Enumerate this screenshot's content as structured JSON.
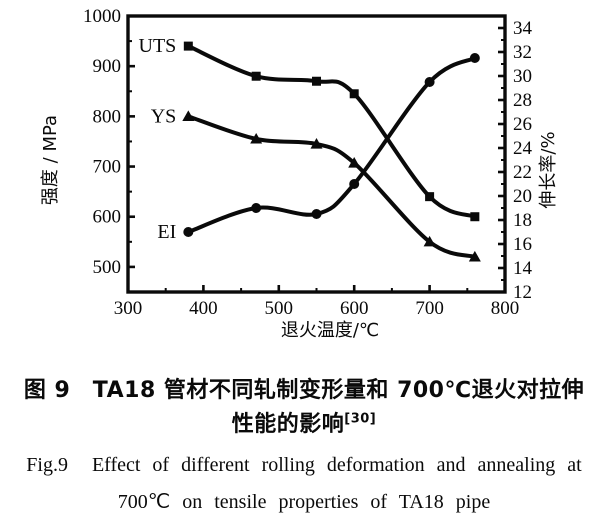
{
  "figure": {
    "caption_cn_line1": "图 9　TA18 管材不同轧制变形量和 700℃退火对拉伸",
    "caption_cn_line2": "性能的影响",
    "caption_cn_ref": "[30]",
    "caption_en_line1": "Fig.9  Effect of different rolling deformation and annealing at",
    "caption_en_line2": "700℃ on tensile properties of TA18 pipe"
  },
  "chart_data": {
    "type": "line",
    "title": "",
    "xlabel": "退火温度/℃",
    "ylabel_left": "强度 / MPa",
    "ylabel_right": "伸长率/%",
    "x": [
      380,
      470,
      550,
      600,
      700,
      760
    ],
    "series": [
      {
        "name": "UTS",
        "axis": "left",
        "marker": "square",
        "values": [
          940,
          880,
          870,
          845,
          640,
          600
        ]
      },
      {
        "name": "YS",
        "axis": "left",
        "marker": "triangle",
        "values": [
          800,
          755,
          745,
          707,
          550,
          520
        ]
      },
      {
        "name": "EI",
        "axis": "right",
        "marker": "circle",
        "values": [
          17,
          19,
          18.5,
          21,
          29.5,
          31.5
        ]
      }
    ],
    "x_ticks": [
      300,
      400,
      500,
      600,
      700,
      800
    ],
    "y_left_ticks": [
      1000,
      900,
      800,
      700,
      600,
      500
    ],
    "y_right_ticks": [
      34,
      32,
      30,
      28,
      26,
      24,
      22,
      20,
      18,
      16,
      14,
      12
    ],
    "xlim": [
      300,
      800
    ],
    "ylim_left": [
      450,
      1000
    ],
    "ylim_right": [
      12,
      35
    ],
    "legend_position": "inline-labels-left-of-first-point",
    "grid": false,
    "colors": {
      "ink": "#0a0a0a",
      "background": "#ffffff"
    }
  }
}
